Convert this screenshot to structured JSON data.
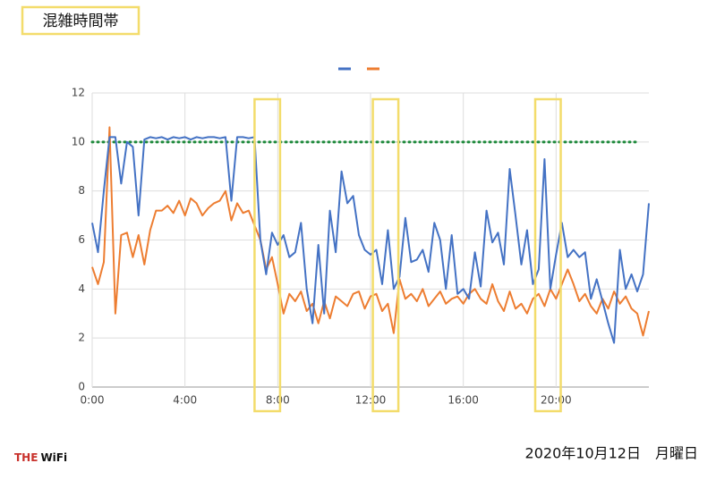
{
  "title": "混雑時間帯",
  "date": "2020年10月12日　月曜日",
  "logo": [
    "THE",
    "WiFi"
  ],
  "chart_data": {
    "type": "line",
    "legend": "top",
    "grid": true,
    "xlim": [
      0,
      24
    ],
    "ylim": [
      0,
      12
    ],
    "yticks": [
      0,
      2,
      4,
      6,
      8,
      10,
      12
    ],
    "xticks": [
      {
        "value": 0,
        "label": "0:00"
      },
      {
        "value": 4,
        "label": "4:00"
      },
      {
        "value": 8,
        "label": "8:00"
      },
      {
        "value": 12,
        "label": "12:00"
      },
      {
        "value": 16,
        "label": "16:00"
      },
      {
        "value": 20,
        "label": "20:00"
      }
    ],
    "reference_line": {
      "value": 10,
      "x": [
        0,
        23.5
      ],
      "color": "#1f8a3c"
    },
    "highlights": [
      {
        "x": [
          7,
          8.1
        ],
        "color": "#f3dc6b"
      },
      {
        "x": [
          12.1,
          13.2
        ],
        "color": "#f3dc6b"
      },
      {
        "x": [
          19.1,
          20.2
        ],
        "color": "#f3dc6b"
      }
    ],
    "x": [
      0,
      0.25,
      0.5,
      0.75,
      1,
      1.25,
      1.5,
      1.75,
      2,
      2.25,
      2.5,
      2.75,
      3,
      3.25,
      3.5,
      3.75,
      4,
      4.25,
      4.5,
      4.75,
      5,
      5.25,
      5.5,
      5.75,
      6,
      6.25,
      6.5,
      6.75,
      7,
      7.25,
      7.5,
      7.75,
      8,
      8.25,
      8.5,
      8.75,
      9,
      9.25,
      9.5,
      9.75,
      10,
      10.25,
      10.5,
      10.75,
      11,
      11.25,
      11.5,
      11.75,
      12,
      12.25,
      12.5,
      12.75,
      13,
      13.25,
      13.5,
      13.75,
      14,
      14.25,
      14.5,
      14.75,
      15,
      15.25,
      15.5,
      15.75,
      16,
      16.25,
      16.5,
      16.75,
      17,
      17.25,
      17.5,
      17.75,
      18,
      18.25,
      18.5,
      18.75,
      19,
      19.25,
      19.5,
      19.75,
      20,
      20.25,
      20.5,
      20.75,
      21,
      21.25,
      21.5,
      21.75,
      22,
      22.25,
      22.5,
      22.75,
      23,
      23.25,
      23.5,
      23.75,
      24
    ],
    "series": [
      {
        "color": "#4472c4",
        "values": [
          6.7,
          5.5,
          8.0,
          10.2,
          10.2,
          8.3,
          10.0,
          9.8,
          7.0,
          10.1,
          10.2,
          10.15,
          10.2,
          10.1,
          10.2,
          10.15,
          10.2,
          10.1,
          10.2,
          10.15,
          10.2,
          10.2,
          10.15,
          10.2,
          7.6,
          10.2,
          10.2,
          10.15,
          10.2,
          6.0,
          4.6,
          6.3,
          5.8,
          6.2,
          5.3,
          5.5,
          6.7,
          4.0,
          2.6,
          5.8,
          3.0,
          7.2,
          5.5,
          8.8,
          7.5,
          7.8,
          6.2,
          5.6,
          5.4,
          5.6,
          4.2,
          6.4,
          4.0,
          4.5,
          6.9,
          5.1,
          5.2,
          5.6,
          4.7,
          6.7,
          6.0,
          4.0,
          6.2,
          3.8,
          4.0,
          3.6,
          5.5,
          4.1,
          7.2,
          5.9,
          6.3,
          5.0,
          8.9,
          7.0,
          5.0,
          6.4,
          4.2,
          4.8,
          9.3,
          4.0,
          5.4,
          6.7,
          5.3,
          5.6,
          5.3,
          5.5,
          3.6,
          4.4,
          3.5,
          2.6,
          1.8,
          5.6,
          4.0,
          4.6,
          3.9,
          4.6,
          7.5
        ]
      },
      {
        "color": "#ed7d31",
        "values": [
          4.9,
          4.2,
          5.1,
          10.6,
          3.0,
          6.2,
          6.3,
          5.3,
          6.2,
          5.0,
          6.4,
          7.2,
          7.2,
          7.4,
          7.1,
          7.6,
          7.0,
          7.7,
          7.5,
          7.0,
          7.3,
          7.5,
          7.6,
          8.0,
          6.8,
          7.5,
          7.1,
          7.2,
          6.6,
          6.0,
          4.8,
          5.3,
          4.2,
          3.0,
          3.8,
          3.5,
          3.9,
          3.1,
          3.4,
          2.6,
          3.5,
          2.8,
          3.7,
          3.5,
          3.3,
          3.8,
          3.9,
          3.2,
          3.7,
          3.8,
          3.1,
          3.4,
          2.2,
          4.4,
          3.6,
          3.8,
          3.5,
          4.0,
          3.3,
          3.6,
          3.9,
          3.4,
          3.6,
          3.7,
          3.4,
          3.8,
          4.0,
          3.6,
          3.4,
          4.2,
          3.5,
          3.1,
          3.9,
          3.2,
          3.4,
          3.0,
          3.6,
          3.8,
          3.3,
          4.0,
          3.6,
          4.2,
          4.8,
          4.2,
          3.5,
          3.8,
          3.3,
          3.0,
          3.6,
          3.2,
          3.9,
          3.4,
          3.7,
          3.2,
          3.0,
          2.1,
          3.1
        ]
      }
    ]
  }
}
